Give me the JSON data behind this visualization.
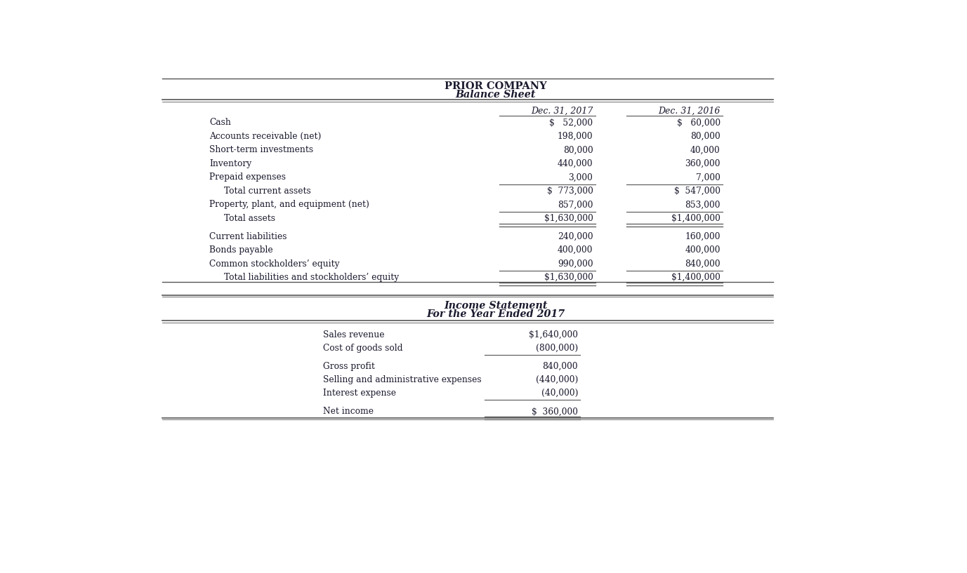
{
  "bg_color": "#ffffff",
  "text_color": "#1a1a2e",
  "line_color": "#555555",
  "fig_width": 13.77,
  "fig_height": 8.17,
  "dpi": 100,
  "bs_title1": "PRIOR COMPANY",
  "bs_title2": "Balance Sheet",
  "bs_col1_header": "Dec. 31, 2017",
  "bs_col2_header": "Dec. 31, 2016",
  "bs_items": [
    {
      "label": "Cash",
      "val1": "$   52,000",
      "val2": "$   60,000",
      "indent": false,
      "sub_total": false,
      "total": false,
      "single_under_after": false,
      "double_under_after": false,
      "gap_before": false,
      "gap_after": false
    },
    {
      "label": "Accounts receivable (net)",
      "val1": "198,000",
      "val2": "80,000",
      "indent": false,
      "sub_total": false,
      "total": false,
      "single_under_after": false,
      "double_under_after": false,
      "gap_before": false,
      "gap_after": false
    },
    {
      "label": "Short-term investments",
      "val1": "80,000",
      "val2": "40,000",
      "indent": false,
      "sub_total": false,
      "total": false,
      "single_under_after": false,
      "double_under_after": false,
      "gap_before": false,
      "gap_after": false
    },
    {
      "label": "Inventory",
      "val1": "440,000",
      "val2": "360,000",
      "indent": false,
      "sub_total": false,
      "total": false,
      "single_under_after": false,
      "double_under_after": false,
      "gap_before": false,
      "gap_after": false
    },
    {
      "label": "Prepaid expenses",
      "val1": "3,000",
      "val2": "7,000",
      "indent": false,
      "sub_total": false,
      "total": false,
      "single_under_after": true,
      "double_under_after": false,
      "gap_before": false,
      "gap_after": false
    },
    {
      "label": "Total current assets",
      "val1": "$  773,000",
      "val2": "$  547,000",
      "indent": true,
      "sub_total": true,
      "total": false,
      "single_under_after": false,
      "double_under_after": false,
      "gap_before": false,
      "gap_after": false
    },
    {
      "label": "Property, plant, and equipment (net)",
      "val1": "857,000",
      "val2": "853,000",
      "indent": false,
      "sub_total": false,
      "total": false,
      "single_under_after": true,
      "double_under_after": false,
      "gap_before": false,
      "gap_after": false
    },
    {
      "label": "Total assets",
      "val1": "$1,630,000",
      "val2": "$1,400,000",
      "indent": true,
      "sub_total": true,
      "total": true,
      "single_under_after": false,
      "double_under_after": true,
      "gap_before": false,
      "gap_after": true
    },
    {
      "label": "Current liabilities",
      "val1": "240,000",
      "val2": "160,000",
      "indent": false,
      "sub_total": false,
      "total": false,
      "single_under_after": false,
      "double_under_after": false,
      "gap_before": false,
      "gap_after": false
    },
    {
      "label": "Bonds payable",
      "val1": "400,000",
      "val2": "400,000",
      "indent": false,
      "sub_total": false,
      "total": false,
      "single_under_after": false,
      "double_under_after": false,
      "gap_before": false,
      "gap_after": false
    },
    {
      "label": "Common stockholders’ equity",
      "val1": "990,000",
      "val2": "840,000",
      "indent": false,
      "sub_total": false,
      "total": false,
      "single_under_after": true,
      "double_under_after": false,
      "gap_before": false,
      "gap_after": false
    },
    {
      "label": "Total liabilities and stockholders’ equity",
      "val1": "$1,630,000",
      "val2": "$1,400,000",
      "indent": true,
      "sub_total": true,
      "total": true,
      "single_under_after": false,
      "double_under_after": true,
      "gap_before": false,
      "gap_after": false
    }
  ],
  "is_title1": "Income Statement",
  "is_title2": "For the Year Ended 2017",
  "is_items": [
    {
      "label": "Sales revenue",
      "val": "$1,640,000",
      "single_under_after": false,
      "double_under_after": false,
      "gap_before": false,
      "gap_after": false
    },
    {
      "label": "Cost of goods sold",
      "val": "(800,000)",
      "single_under_after": true,
      "double_under_after": false,
      "gap_before": false,
      "gap_after": false
    },
    {
      "label": "Gross profit",
      "val": "840,000",
      "single_under_after": false,
      "double_under_after": false,
      "gap_before": true,
      "gap_after": false
    },
    {
      "label": "Selling and administrative expenses",
      "val": "(440,000)",
      "single_under_after": false,
      "double_under_after": false,
      "gap_before": false,
      "gap_after": false
    },
    {
      "label": "Interest expense",
      "val": "(40,000)",
      "single_under_after": true,
      "double_under_after": false,
      "gap_before": false,
      "gap_after": false
    },
    {
      "label": "Net income",
      "val": "$  360,000",
      "single_under_after": false,
      "double_under_after": true,
      "gap_before": true,
      "gap_after": false
    }
  ]
}
